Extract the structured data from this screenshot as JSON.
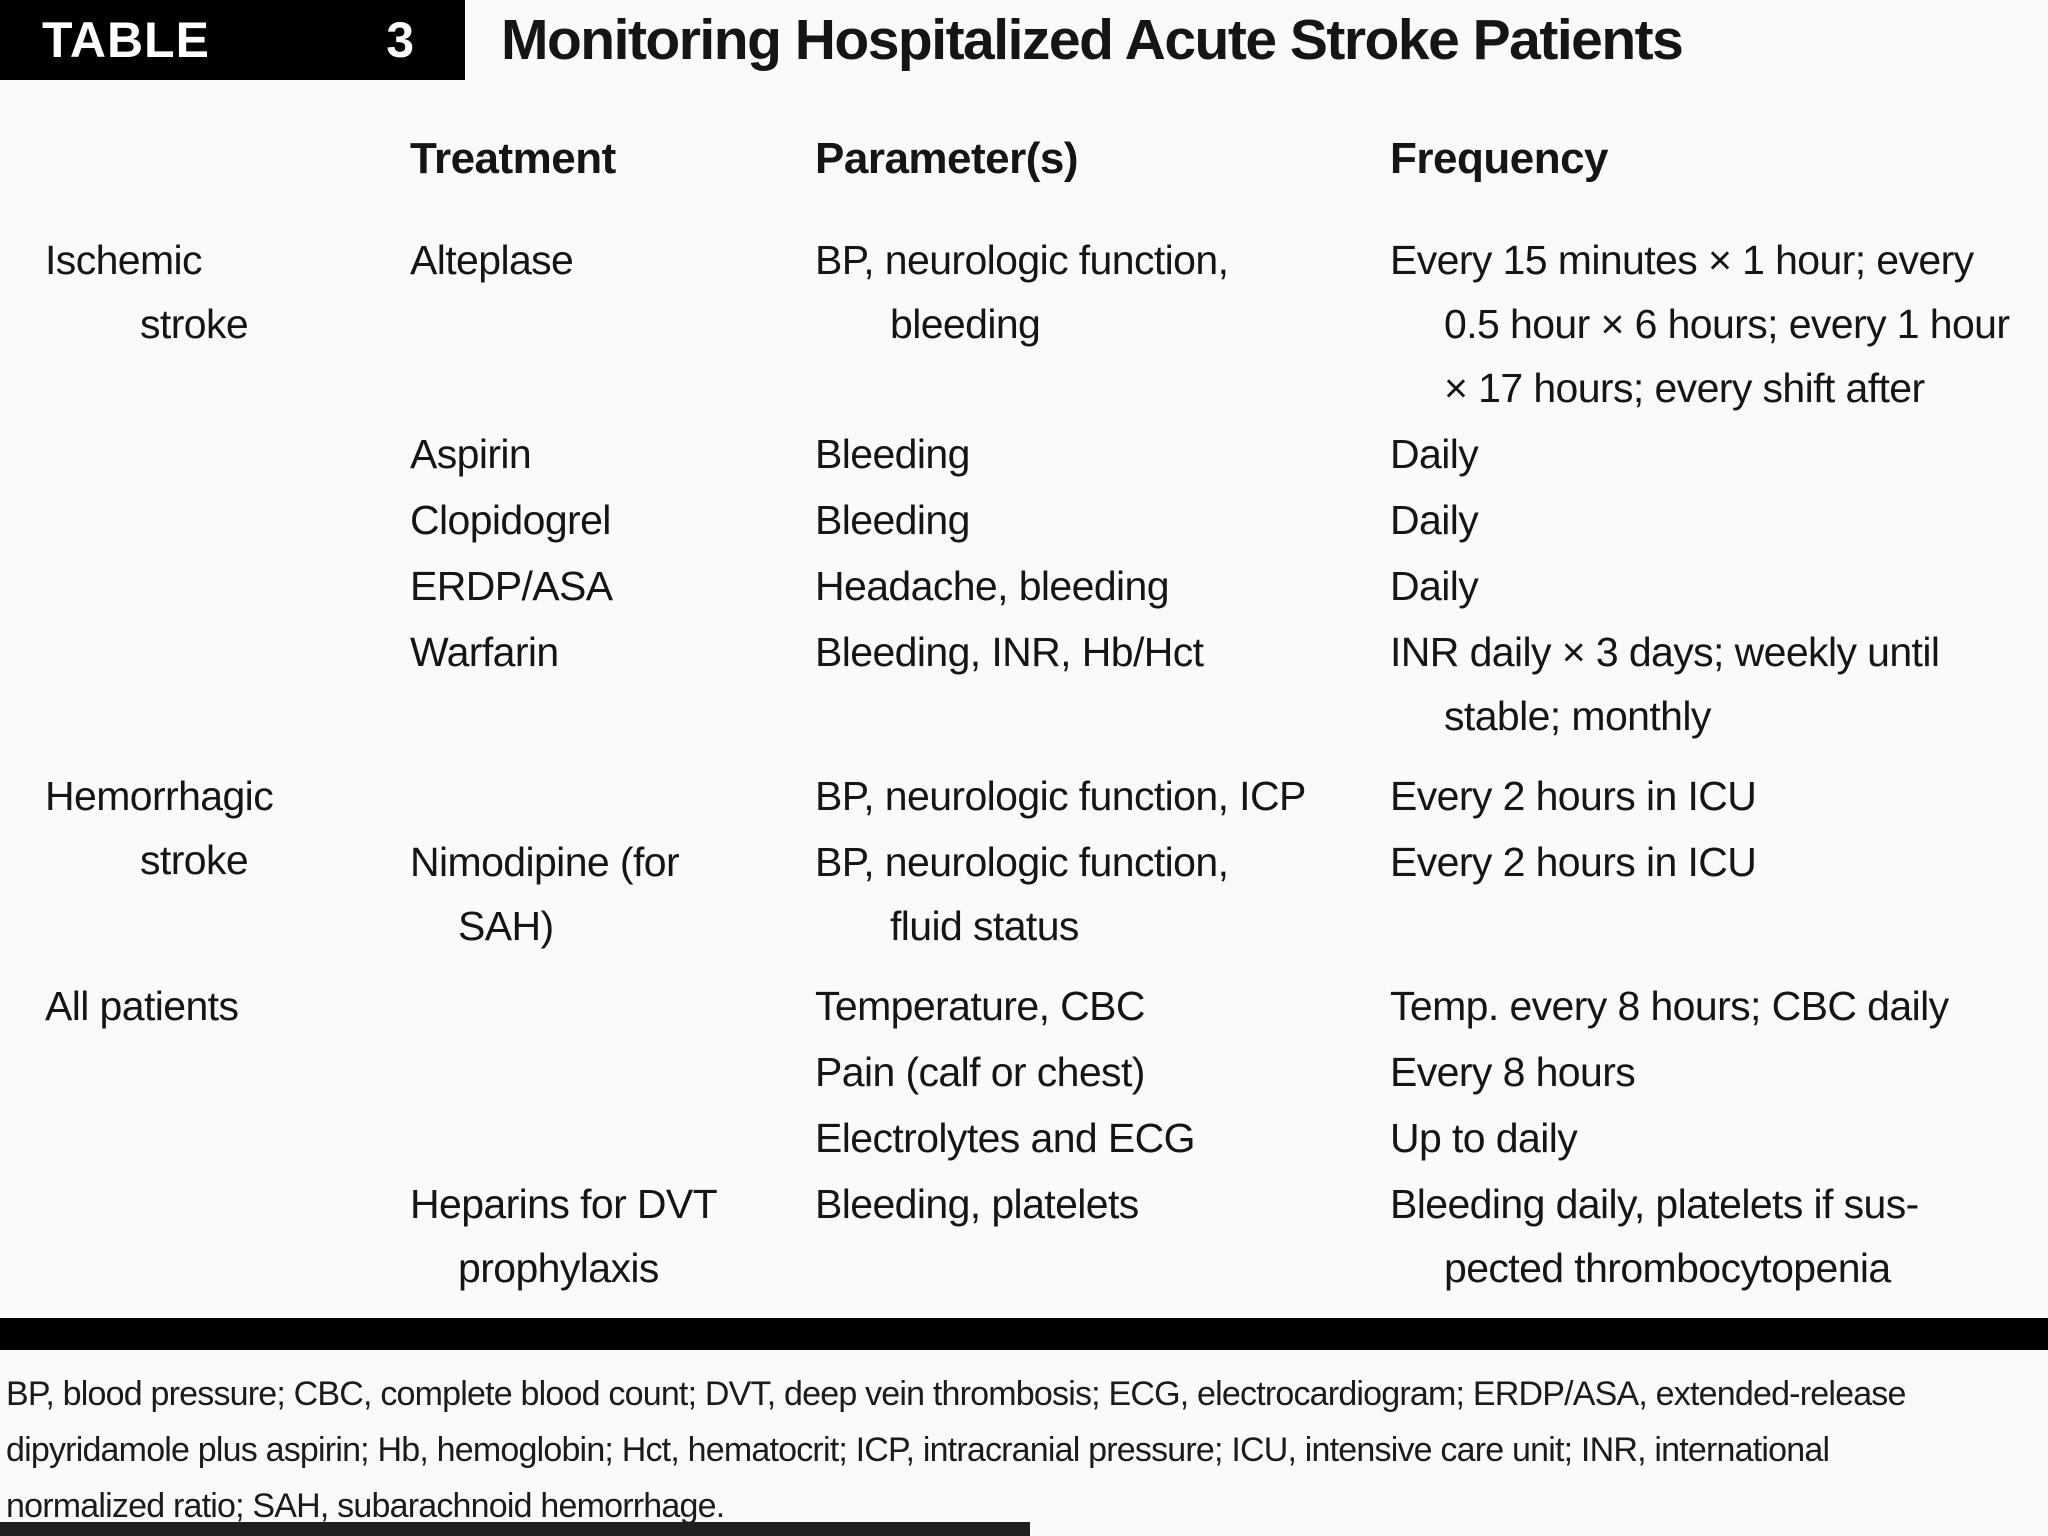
{
  "header": {
    "label": "TABLE",
    "number": "3",
    "title": "Monitoring Hospitalized Acute Stroke Patients"
  },
  "columns": {
    "treatment": "Treatment",
    "parameters": "Parameter(s)",
    "frequency": "Frequency"
  },
  "sections": [
    {
      "category": "Ischemic\nstroke",
      "rows": [
        {
          "treatment": "Alteplase",
          "parameters": "BP, neurologic function,\nbleeding",
          "frequency": "Every 15 minutes × 1 hour; every\n0.5 hour × 6 hours; every 1 hour\n× 17 hours; every shift after"
        },
        {
          "treatment": "Aspirin",
          "parameters": "Bleeding",
          "frequency": "Daily"
        },
        {
          "treatment": "Clopidogrel",
          "parameters": "Bleeding",
          "frequency": "Daily"
        },
        {
          "treatment": "ERDP/ASA",
          "parameters": "Headache, bleeding",
          "frequency": "Daily"
        },
        {
          "treatment": "Warfarin",
          "parameters": "Bleeding, INR, Hb/Hct",
          "frequency": "INR daily × 3 days; weekly until\nstable; monthly"
        }
      ]
    },
    {
      "category": "Hemorrhagic\nstroke",
      "rows": [
        {
          "treatment": "",
          "parameters": "BP, neurologic function, ICP",
          "frequency": "Every 2 hours in ICU"
        },
        {
          "treatment": "Nimodipine (for\nSAH)",
          "parameters": "BP, neurologic function,\nfluid status",
          "frequency": "Every 2 hours in ICU"
        }
      ]
    },
    {
      "category": "All patients",
      "rows": [
        {
          "treatment": "",
          "parameters": "Temperature, CBC",
          "frequency": "Temp. every 8 hours; CBC daily"
        },
        {
          "treatment": "",
          "parameters": "Pain (calf or chest)",
          "frequency": "Every 8 hours"
        },
        {
          "treatment": "",
          "parameters": "Electrolytes and ECG",
          "frequency": "Up to daily"
        },
        {
          "treatment": "Heparins for DVT\nprophylaxis",
          "parameters": "Bleeding, platelets",
          "frequency": "Bleeding daily, platelets if sus-\npected thrombocytopenia"
        }
      ]
    }
  ],
  "footnote": "BP, blood pressure; CBC, complete blood count; DVT, deep vein thrombosis; ECG, electrocardiogram; ERDP/ASA, extended-release\ndipyridamole plus aspirin; Hb, hemoglobin; Hct, hematocrit; ICP, intracranial pressure; ICU, intensive care unit; INR, international\nnormalized ratio; SAH, subarachnoid hemorrhage."
}
